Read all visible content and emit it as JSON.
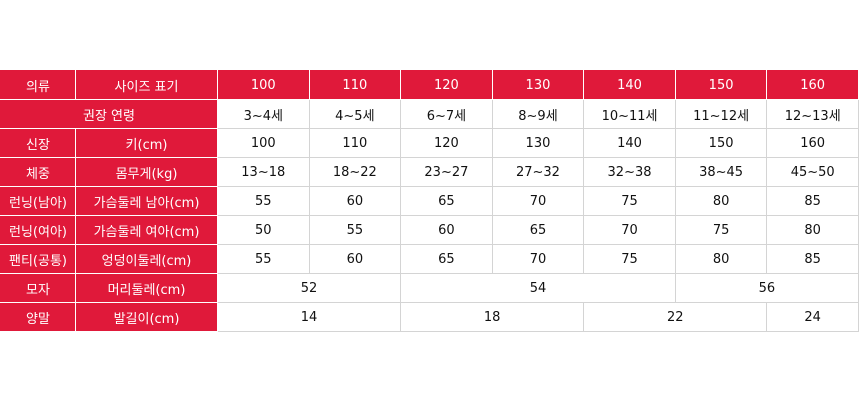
{
  "accent_color": "#e0193a",
  "header": {
    "category": "의류",
    "size_label": "사이즈 표기",
    "sizes": [
      "100",
      "110",
      "120",
      "130",
      "140",
      "150",
      "160"
    ]
  },
  "rows": [
    {
      "category": "권장 연령",
      "item": null,
      "values": [
        "3~4세",
        "4~5세",
        "6~7세",
        "8~9세",
        "10~11세",
        "11~12세",
        "12~13세"
      ]
    },
    {
      "category": "신장",
      "item": "키(cm)",
      "values": [
        "100",
        "110",
        "120",
        "130",
        "140",
        "150",
        "160"
      ]
    },
    {
      "category": "체중",
      "item": "몸무게(kg)",
      "values": [
        "13~18",
        "18~22",
        "23~27",
        "27~32",
        "32~38",
        "38~45",
        "45~50"
      ]
    },
    {
      "category": "런닝(남아)",
      "item": "가슴둘레 남아(cm)",
      "values": [
        "55",
        "60",
        "65",
        "70",
        "75",
        "80",
        "85"
      ]
    },
    {
      "category": "런닝(여아)",
      "item": "가슴둘레 여아(cm)",
      "values": [
        "50",
        "55",
        "60",
        "65",
        "70",
        "75",
        "80"
      ]
    },
    {
      "category": "팬티(공통)",
      "item": "엉덩이둘레(cm)",
      "values": [
        "55",
        "60",
        "65",
        "70",
        "75",
        "80",
        "85"
      ]
    },
    {
      "category": "모자",
      "item": "머리둘레(cm)",
      "values": [
        "52",
        "54",
        "56"
      ]
    },
    {
      "category": "양말",
      "item": "발길이(cm)",
      "values": [
        "14",
        "18",
        "22",
        "24"
      ]
    }
  ]
}
